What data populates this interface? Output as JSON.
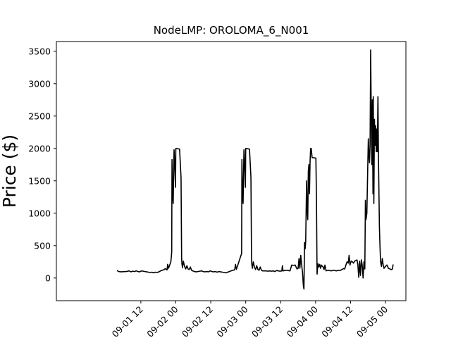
{
  "chart_data": {
    "type": "line",
    "title": "NodeLMP: OROLOMA_6_N001",
    "xlabel": "",
    "ylabel": "Price ($)",
    "xlim_hours": [
      -17,
      103
    ],
    "ylim": [
      -350,
      3650
    ],
    "x_ticks": [
      {
        "hour": 12,
        "label": "09-01 12"
      },
      {
        "hour": 24,
        "label": "09-02 00"
      },
      {
        "hour": 36,
        "label": "09-02 12"
      },
      {
        "hour": 48,
        "label": "09-03 00"
      },
      {
        "hour": 60,
        "label": "09-03 12"
      },
      {
        "hour": 72,
        "label": "09-04 00"
      },
      {
        "hour": 84,
        "label": "09-04 12"
      },
      {
        "hour": 96,
        "label": "09-05 00"
      }
    ],
    "y_ticks": [
      {
        "value": 0,
        "label": "0"
      },
      {
        "value": 500,
        "label": "500"
      },
      {
        "value": 1000,
        "label": "1000"
      },
      {
        "value": 1500,
        "label": "1500"
      },
      {
        "value": 2000,
        "label": "2000"
      },
      {
        "value": 2500,
        "label": "2500"
      },
      {
        "value": 3000,
        "label": "3000"
      },
      {
        "value": 3500,
        "label": "3500"
      }
    ],
    "grid": false,
    "legend": "none",
    "series": [
      {
        "color": "#000000",
        "points": [
          [
            3.8,
            115
          ],
          [
            4.4,
            100
          ],
          [
            5.2,
            95
          ],
          [
            6.0,
            98
          ],
          [
            7.0,
            100
          ],
          [
            8.0,
            110
          ],
          [
            8.6,
            95
          ],
          [
            9.2,
            105
          ],
          [
            9.8,
            100
          ],
          [
            10.4,
            110
          ],
          [
            11.0,
            100
          ],
          [
            11.6,
            95
          ],
          [
            12.2,
            110
          ],
          [
            12.8,
            105
          ],
          [
            13.4,
            100
          ],
          [
            14.0,
            95
          ],
          [
            14.6,
            90
          ],
          [
            15.2,
            85
          ],
          [
            15.8,
            90
          ],
          [
            16.4,
            80
          ],
          [
            17.0,
            90
          ],
          [
            17.6,
            85
          ],
          [
            18.2,
            95
          ],
          [
            18.8,
            110
          ],
          [
            19.4,
            120
          ],
          [
            20.0,
            130
          ],
          [
            20.4,
            145
          ],
          [
            21.0,
            125
          ],
          [
            21.2,
            210
          ],
          [
            21.5,
            150
          ],
          [
            21.9,
            200
          ],
          [
            22.3,
            250
          ],
          [
            22.6,
            400
          ],
          [
            22.7,
            1830
          ],
          [
            22.9,
            1350
          ],
          [
            23.1,
            1150
          ],
          [
            23.4,
            1980
          ],
          [
            23.6,
            1800
          ],
          [
            23.9,
            1400
          ],
          [
            24.0,
            2000
          ],
          [
            25.3,
            1990
          ],
          [
            25.8,
            1550
          ],
          [
            26.0,
            320
          ],
          [
            26.1,
            220
          ],
          [
            26.3,
            160
          ],
          [
            26.6,
            260
          ],
          [
            27.0,
            180
          ],
          [
            27.4,
            140
          ],
          [
            27.8,
            190
          ],
          [
            28.2,
            140
          ],
          [
            28.6,
            130
          ],
          [
            29.0,
            170
          ],
          [
            29.4,
            120
          ],
          [
            29.8,
            110
          ],
          [
            30.4,
            100
          ],
          [
            31.0,
            95
          ],
          [
            31.6,
            100
          ],
          [
            32.2,
            105
          ],
          [
            32.8,
            110
          ],
          [
            33.4,
            100
          ],
          [
            34.0,
            95
          ],
          [
            34.6,
            100
          ],
          [
            35.2,
            95
          ],
          [
            35.8,
            110
          ],
          [
            36.4,
            100
          ],
          [
            37.0,
            95
          ],
          [
            37.6,
            100
          ],
          [
            38.2,
            90
          ],
          [
            38.8,
            100
          ],
          [
            39.4,
            95
          ],
          [
            40.0,
            90
          ],
          [
            40.6,
            85
          ],
          [
            41.2,
            80
          ],
          [
            41.8,
            90
          ],
          [
            42.4,
            100
          ],
          [
            43.0,
            110
          ],
          [
            43.6,
            120
          ],
          [
            44.2,
            125
          ],
          [
            44.5,
            210
          ],
          [
            44.8,
            135
          ],
          [
            45.3,
            200
          ],
          [
            45.8,
            270
          ],
          [
            46.6,
            380
          ],
          [
            46.7,
            1830
          ],
          [
            46.9,
            1350
          ],
          [
            47.1,
            1150
          ],
          [
            47.4,
            1980
          ],
          [
            47.6,
            1800
          ],
          [
            47.9,
            1400
          ],
          [
            48.0,
            2000
          ],
          [
            49.3,
            1990
          ],
          [
            49.8,
            1550
          ],
          [
            50.0,
            300
          ],
          [
            50.1,
            210
          ],
          [
            50.3,
            150
          ],
          [
            50.6,
            250
          ],
          [
            51.0,
            170
          ],
          [
            51.4,
            130
          ],
          [
            51.8,
            190
          ],
          [
            52.2,
            130
          ],
          [
            52.6,
            120
          ],
          [
            53.0,
            170
          ],
          [
            53.4,
            120
          ],
          [
            53.8,
            110
          ],
          [
            54.4,
            110
          ],
          [
            55.0,
            110
          ],
          [
            55.6,
            105
          ],
          [
            56.2,
            110
          ],
          [
            56.8,
            105
          ],
          [
            57.4,
            110
          ],
          [
            58.0,
            100
          ],
          [
            58.6,
            115
          ],
          [
            59.2,
            110
          ],
          [
            59.8,
            105
          ],
          [
            60.4,
            110
          ],
          [
            60.6,
            190
          ],
          [
            60.8,
            110
          ],
          [
            61.4,
            115
          ],
          [
            62.0,
            120
          ],
          [
            62.6,
            115
          ],
          [
            63.2,
            110
          ],
          [
            63.8,
            200
          ],
          [
            64.4,
            195
          ],
          [
            65.0,
            200
          ],
          [
            65.6,
            140
          ],
          [
            66.0,
            150
          ],
          [
            66.3,
            300
          ],
          [
            66.6,
            150
          ],
          [
            66.9,
            350
          ],
          [
            67.2,
            200
          ],
          [
            67.5,
            90
          ],
          [
            67.8,
            -120
          ],
          [
            68.0,
            -170
          ],
          [
            68.2,
            550
          ],
          [
            68.4,
            450
          ],
          [
            68.6,
            560
          ],
          [
            68.9,
            1500
          ],
          [
            69.1,
            1050
          ],
          [
            69.3,
            900
          ],
          [
            69.5,
            1650
          ],
          [
            69.7,
            1750
          ],
          [
            69.9,
            1300
          ],
          [
            70.1,
            1800
          ],
          [
            70.3,
            2000
          ],
          [
            70.5,
            2000
          ],
          [
            70.8,
            1860
          ],
          [
            72.1,
            1850
          ],
          [
            72.3,
            1200
          ],
          [
            72.5,
            60
          ],
          [
            72.8,
            220
          ],
          [
            73.1,
            170
          ],
          [
            73.4,
            210
          ],
          [
            73.7,
            150
          ],
          [
            74.0,
            200
          ],
          [
            74.3,
            180
          ],
          [
            74.6,
            170
          ],
          [
            74.9,
            130
          ],
          [
            75.2,
            200
          ],
          [
            75.6,
            110
          ],
          [
            76.2,
            120
          ],
          [
            76.8,
            115
          ],
          [
            77.4,
            110
          ],
          [
            78.0,
            120
          ],
          [
            78.6,
            115
          ],
          [
            79.2,
            110
          ],
          [
            79.8,
            120
          ],
          [
            80.4,
            115
          ],
          [
            81.0,
            130
          ],
          [
            81.6,
            145
          ],
          [
            82.0,
            140
          ],
          [
            82.4,
            200
          ],
          [
            82.8,
            250
          ],
          [
            83.2,
            230
          ],
          [
            83.5,
            350
          ],
          [
            83.8,
            200
          ],
          [
            84.2,
            260
          ],
          [
            84.6,
            250
          ],
          [
            85.0,
            230
          ],
          [
            85.4,
            260
          ],
          [
            85.8,
            270
          ],
          [
            86.2,
            280
          ],
          [
            86.5,
            210
          ],
          [
            86.8,
            10
          ],
          [
            87.1,
            260
          ],
          [
            87.4,
            40
          ],
          [
            87.7,
            280
          ],
          [
            88.0,
            200
          ],
          [
            88.3,
            0
          ],
          [
            88.6,
            250
          ],
          [
            88.9,
            140
          ],
          [
            89.1,
            1200
          ],
          [
            89.3,
            900
          ],
          [
            89.6,
            1000
          ],
          [
            89.9,
            1700
          ],
          [
            90.1,
            2150
          ],
          [
            90.3,
            1900
          ],
          [
            90.5,
            1780
          ],
          [
            90.7,
            2050
          ],
          [
            90.9,
            3520
          ],
          [
            91.1,
            2600
          ],
          [
            91.3,
            1750
          ],
          [
            91.5,
            2750
          ],
          [
            91.7,
            1300
          ],
          [
            91.8,
            2800
          ],
          [
            92.0,
            1150
          ],
          [
            92.2,
            2450
          ],
          [
            92.4,
            2050
          ],
          [
            92.6,
            2350
          ],
          [
            92.8,
            1950
          ],
          [
            93.0,
            2300
          ],
          [
            93.2,
            1950
          ],
          [
            93.4,
            2800
          ],
          [
            93.6,
            1800
          ],
          [
            93.9,
            800
          ],
          [
            94.1,
            500
          ],
          [
            94.3,
            250
          ],
          [
            94.6,
            180
          ],
          [
            94.9,
            300
          ],
          [
            95.2,
            200
          ],
          [
            95.5,
            150
          ],
          [
            96.0,
            180
          ],
          [
            96.5,
            200
          ],
          [
            97.0,
            150
          ],
          [
            97.5,
            140
          ],
          [
            98.0,
            130
          ],
          [
            98.4,
            140
          ],
          [
            98.6,
            210
          ]
        ]
      }
    ]
  }
}
